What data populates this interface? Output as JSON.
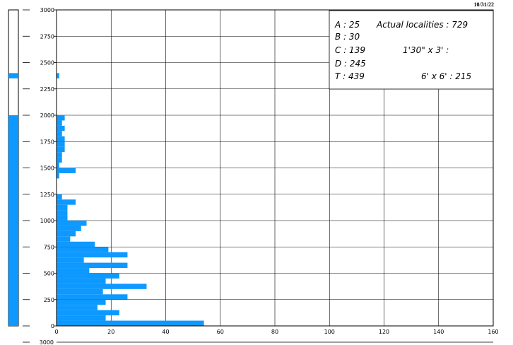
{
  "date_label": "10/31/22",
  "legend_box": {
    "col1": [
      "A : 25",
      "B : 30",
      "C : 139",
      "D : 245",
      "T : 439"
    ],
    "actual_localities": "Actual localities : 729",
    "grid_small": "1'30\" x 3' :",
    "grid_large": "6' x 6' : 215"
  },
  "footer_tick": "3000",
  "colors": {
    "bar": "#0d99ff",
    "grid": "#000000",
    "background": "#ffffff"
  },
  "chart_data": {
    "type": "bar",
    "orientation": "horizontal",
    "title": "",
    "xlabel": "",
    "ylabel": "",
    "xlim": [
      0,
      160
    ],
    "ylim": [
      0,
      3000
    ],
    "grid": true,
    "x_ticks": [
      "0",
      "20",
      "40",
      "60",
      "80",
      "100",
      "120",
      "140",
      "160"
    ],
    "y_ticks": [
      "0",
      "250",
      "500",
      "750",
      "1000",
      "1250",
      "1500",
      "1750",
      "2000",
      "2250",
      "2500",
      "2750",
      "3000"
    ],
    "bin_size": 50,
    "series": [
      {
        "bins": [
          {
            "y": 0,
            "x": 54
          },
          {
            "y": 50,
            "x": 18
          },
          {
            "y": 100,
            "x": 23
          },
          {
            "y": 150,
            "x": 15
          },
          {
            "y": 200,
            "x": 18
          },
          {
            "y": 250,
            "x": 26
          },
          {
            "y": 300,
            "x": 17
          },
          {
            "y": 350,
            "x": 33
          },
          {
            "y": 400,
            "x": 18
          },
          {
            "y": 450,
            "x": 23
          },
          {
            "y": 500,
            "x": 12
          },
          {
            "y": 550,
            "x": 26
          },
          {
            "y": 600,
            "x": 10
          },
          {
            "y": 650,
            "x": 26
          },
          {
            "y": 700,
            "x": 19
          },
          {
            "y": 750,
            "x": 14
          },
          {
            "y": 800,
            "x": 5
          },
          {
            "y": 850,
            "x": 7
          },
          {
            "y": 900,
            "x": 9
          },
          {
            "y": 950,
            "x": 11
          },
          {
            "y": 1000,
            "x": 4
          },
          {
            "y": 1050,
            "x": 4
          },
          {
            "y": 1100,
            "x": 4
          },
          {
            "y": 1150,
            "x": 7
          },
          {
            "y": 1200,
            "x": 2
          },
          {
            "y": 1250,
            "x": 0
          },
          {
            "y": 1300,
            "x": 0
          },
          {
            "y": 1350,
            "x": 0
          },
          {
            "y": 1400,
            "x": 1
          },
          {
            "y": 1450,
            "x": 7
          },
          {
            "y": 1500,
            "x": 1
          },
          {
            "y": 1550,
            "x": 2
          },
          {
            "y": 1600,
            "x": 2
          },
          {
            "y": 1650,
            "x": 3
          },
          {
            "y": 1700,
            "x": 3
          },
          {
            "y": 1750,
            "x": 3
          },
          {
            "y": 1800,
            "x": 2
          },
          {
            "y": 1850,
            "x": 3
          },
          {
            "y": 1900,
            "x": 2
          },
          {
            "y": 1950,
            "x": 3
          },
          {
            "y": 2350,
            "x": 1
          }
        ]
      }
    ],
    "side_strip": {
      "type": "range-bar",
      "ylim": [
        0,
        3000
      ],
      "ranges": [
        [
          0,
          2000
        ],
        [
          2350,
          2400
        ]
      ]
    }
  }
}
